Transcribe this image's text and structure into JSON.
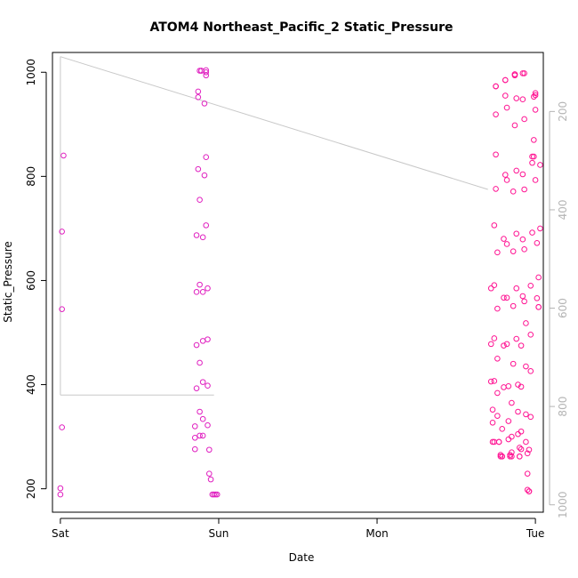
{
  "chart_data": {
    "type": "scatter",
    "title": "ATOM4 Northeast_Pacific_2 Static_Pressure",
    "xlabel": "Date",
    "ylabel": "Static_Pressure",
    "x_ticks": [
      "Sat",
      "Sun",
      "Mon",
      "Tue"
    ],
    "y_ticks": [
      200,
      400,
      600,
      800,
      1000
    ],
    "y2_ticks": [
      200,
      400,
      600,
      800,
      1000
    ],
    "xlim_days": [
      -0.05,
      3.05
    ],
    "ylim": [
      155,
      1038
    ],
    "y2lim_reversed": [
      1015,
      80
    ],
    "grid": false,
    "colors": {
      "point_early": "#e020c0",
      "point_late": "#ff1493",
      "line": "#c8c8c8",
      "right_axis": "#b4b4b4",
      "axes": "#000000"
    },
    "series": [
      {
        "points": [
          [
            0.0,
            189
          ],
          [
            0.0,
            201
          ],
          [
            0.01,
            318
          ],
          [
            0.01,
            545
          ],
          [
            0.01,
            694
          ],
          [
            0.02,
            840
          ],
          [
            0.85,
            276
          ],
          [
            0.85,
            298
          ],
          [
            0.85,
            320
          ],
          [
            0.86,
            393
          ],
          [
            0.86,
            476
          ],
          [
            0.86,
            578
          ],
          [
            0.86,
            687
          ],
          [
            0.87,
            814
          ],
          [
            0.87,
            952
          ],
          [
            0.87,
            963
          ],
          [
            0.88,
            755
          ],
          [
            0.88,
            592
          ],
          [
            0.88,
            442
          ],
          [
            0.88,
            302
          ],
          [
            0.88,
            348
          ],
          [
            0.88,
            1003
          ],
          [
            0.89,
            1003
          ],
          [
            0.89,
            1003
          ],
          [
            0.9,
            302
          ],
          [
            0.9,
            334
          ],
          [
            0.9,
            405
          ],
          [
            0.9,
            484
          ],
          [
            0.9,
            578
          ],
          [
            0.9,
            683
          ],
          [
            0.91,
            802
          ],
          [
            0.91,
            940
          ],
          [
            0.92,
            994
          ],
          [
            0.92,
            1000
          ],
          [
            0.92,
            1004
          ],
          [
            0.92,
            837
          ],
          [
            0.92,
            706
          ],
          [
            0.93,
            585
          ],
          [
            0.93,
            487
          ],
          [
            0.93,
            398
          ],
          [
            0.93,
            322
          ],
          [
            0.94,
            275
          ],
          [
            0.94,
            229
          ],
          [
            0.95,
            218
          ],
          [
            0.96,
            189
          ],
          [
            0.97,
            189
          ],
          [
            0.98,
            189
          ],
          [
            0.99,
            189
          ]
        ]
      },
      {
        "points": [
          [
            2.72,
            478
          ],
          [
            2.72,
            585
          ],
          [
            2.72,
            406
          ],
          [
            2.73,
            352
          ],
          [
            2.73,
            327
          ],
          [
            2.73,
            290
          ],
          [
            2.74,
            290
          ],
          [
            2.74,
            407
          ],
          [
            2.74,
            489
          ],
          [
            2.74,
            591
          ],
          [
            2.74,
            706
          ],
          [
            2.75,
            842
          ],
          [
            2.75,
            919
          ],
          [
            2.75,
            973
          ],
          [
            2.75,
            973
          ],
          [
            2.75,
            776
          ],
          [
            2.76,
            654
          ],
          [
            2.76,
            546
          ],
          [
            2.76,
            450
          ],
          [
            2.76,
            384
          ],
          [
            2.76,
            340
          ],
          [
            2.77,
            290
          ],
          [
            2.77,
            290
          ],
          [
            2.78,
            265
          ],
          [
            2.78,
            262
          ],
          [
            2.79,
            262
          ],
          [
            2.79,
            262
          ],
          [
            2.79,
            315
          ],
          [
            2.8,
            395
          ],
          [
            2.8,
            475
          ],
          [
            2.8,
            567
          ],
          [
            2.8,
            680
          ],
          [
            2.81,
            803
          ],
          [
            2.81,
            955
          ],
          [
            2.81,
            985
          ],
          [
            2.81,
            985
          ],
          [
            2.82,
            932
          ],
          [
            2.82,
            793
          ],
          [
            2.82,
            670
          ],
          [
            2.82,
            567
          ],
          [
            2.82,
            478
          ],
          [
            2.83,
            397
          ],
          [
            2.83,
            330
          ],
          [
            2.83,
            295
          ],
          [
            2.84,
            265
          ],
          [
            2.84,
            262
          ],
          [
            2.85,
            262
          ],
          [
            2.85,
            270
          ],
          [
            2.85,
            300
          ],
          [
            2.85,
            365
          ],
          [
            2.86,
            440
          ],
          [
            2.86,
            551
          ],
          [
            2.86,
            656
          ],
          [
            2.86,
            771
          ],
          [
            2.87,
            898
          ],
          [
            2.87,
            994
          ],
          [
            2.87,
            996
          ],
          [
            2.87,
            996
          ],
          [
            2.88,
            950
          ],
          [
            2.88,
            811
          ],
          [
            2.88,
            690
          ],
          [
            2.88,
            585
          ],
          [
            2.88,
            488
          ],
          [
            2.89,
            400
          ],
          [
            2.89,
            348
          ],
          [
            2.89,
            305
          ],
          [
            2.9,
            279
          ],
          [
            2.9,
            262
          ],
          [
            2.9,
            262
          ],
          [
            2.91,
            276
          ],
          [
            2.91,
            310
          ],
          [
            2.91,
            396
          ],
          [
            2.91,
            475
          ],
          [
            2.92,
            570
          ],
          [
            2.92,
            679
          ],
          [
            2.92,
            804
          ],
          [
            2.92,
            948
          ],
          [
            2.92,
            998
          ],
          [
            2.93,
            998
          ],
          [
            2.93,
            910
          ],
          [
            2.93,
            775
          ],
          [
            2.93,
            660
          ],
          [
            2.93,
            560
          ],
          [
            2.94,
            518
          ],
          [
            2.94,
            435
          ],
          [
            2.94,
            343
          ],
          [
            2.94,
            290
          ],
          [
            2.95,
            268
          ],
          [
            2.95,
            229
          ],
          [
            2.95,
            198
          ],
          [
            2.96,
            195
          ],
          [
            2.96,
            195
          ],
          [
            2.96,
            275
          ],
          [
            2.97,
            338
          ],
          [
            2.97,
            426
          ],
          [
            2.97,
            496
          ],
          [
            2.97,
            590
          ],
          [
            2.98,
            692
          ],
          [
            2.98,
            826
          ],
          [
            2.98,
            838
          ],
          [
            2.99,
            838
          ],
          [
            2.99,
            870
          ],
          [
            2.99,
            953
          ],
          [
            3.0,
            960
          ],
          [
            3.0,
            956
          ],
          [
            3.0,
            928
          ],
          [
            3.0,
            793
          ],
          [
            3.01,
            672
          ],
          [
            3.01,
            566
          ],
          [
            3.02,
            549
          ],
          [
            3.02,
            549
          ],
          [
            3.02,
            606
          ],
          [
            3.03,
            700
          ],
          [
            3.03,
            822
          ]
        ]
      }
    ]
  }
}
